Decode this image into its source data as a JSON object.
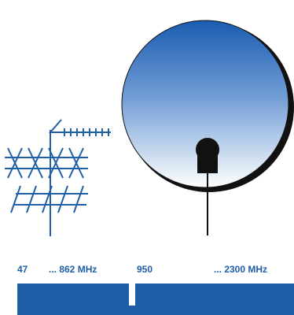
{
  "bands": [
    {
      "start": "47",
      "end": "... 862 MHz"
    },
    {
      "start": "950",
      "end": "... 2300 MHz"
    }
  ]
}
